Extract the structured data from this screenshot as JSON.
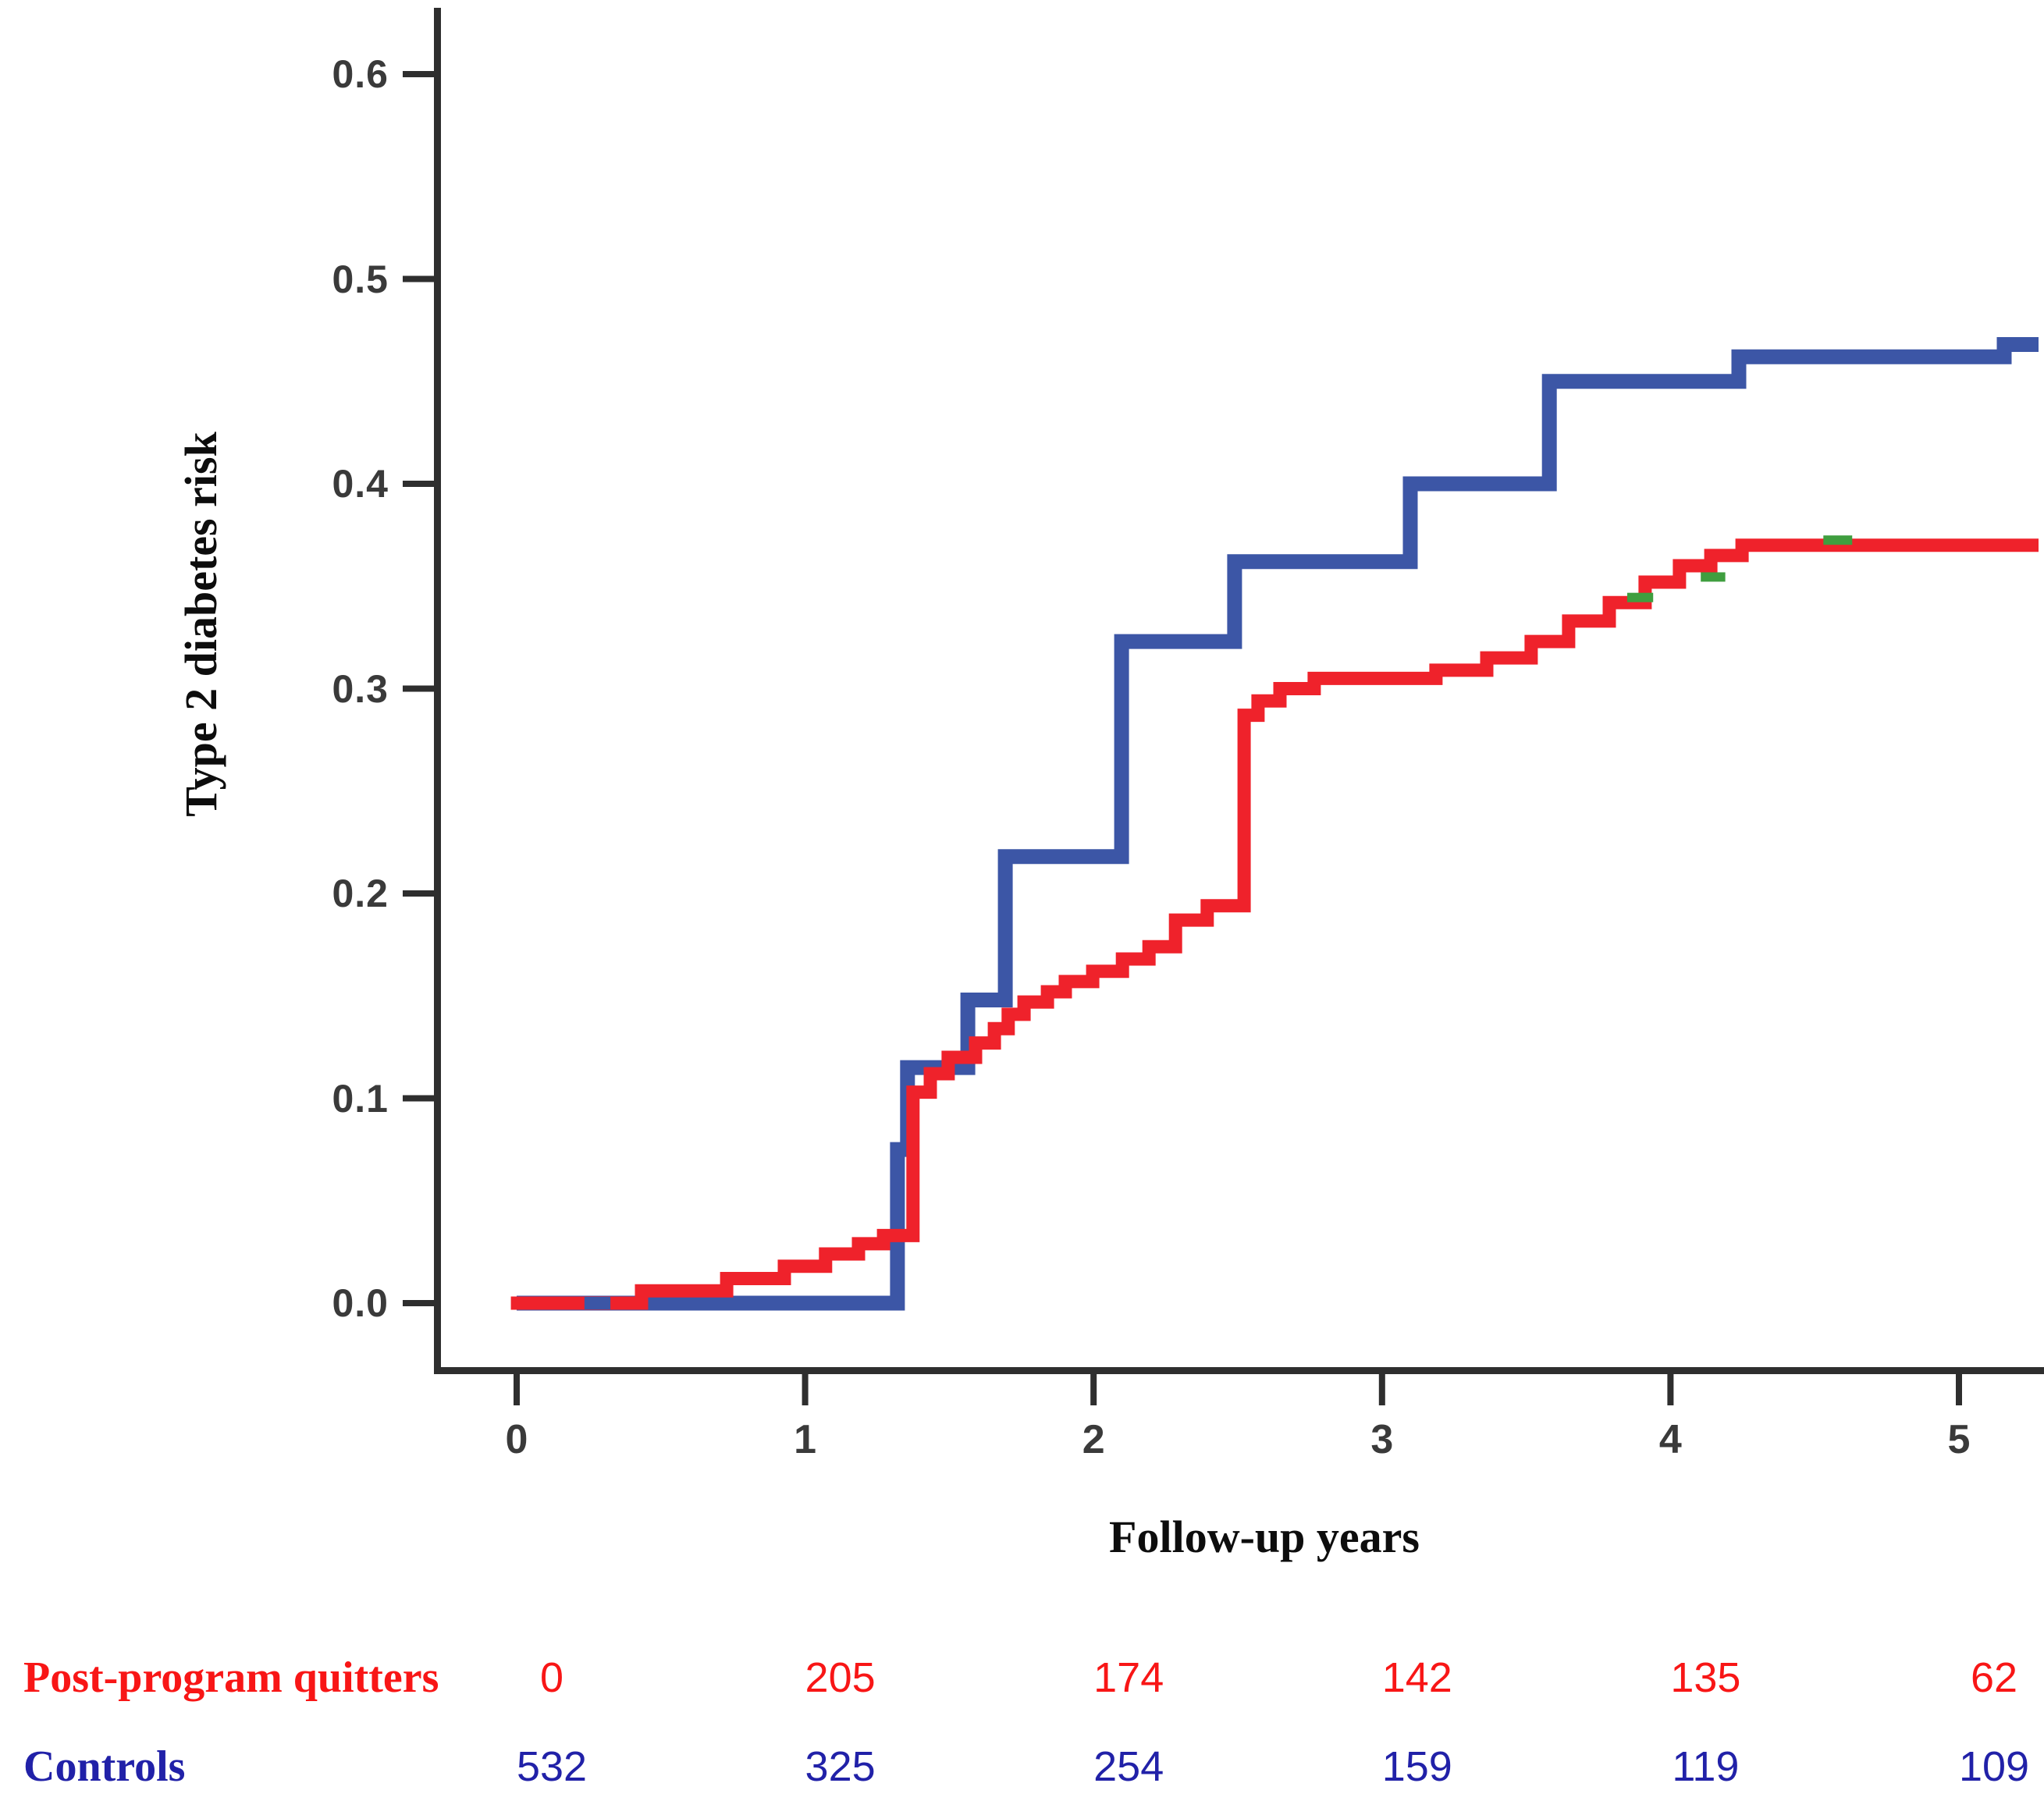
{
  "chart_data": {
    "type": "line",
    "subtype": "kaplan-meier-step-cumulative-incidence",
    "title": "",
    "xlabel": "Follow-up years",
    "ylabel": "Type 2 diabetes risk",
    "xlim": [
      -0.29,
      5.3
    ],
    "ylim": [
      -0.033,
      0.632
    ],
    "x_ticks": [
      "0",
      "1",
      "2",
      "3",
      "4",
      "5"
    ],
    "x_tick_values": [
      0,
      1,
      2,
      3,
      4,
      5
    ],
    "y_ticks": [
      "0.0",
      "0.1",
      "0.2",
      "0.3",
      "0.4",
      "0.5",
      "0.6"
    ],
    "y_tick_values": [
      0.0,
      0.1,
      0.2,
      0.3,
      0.4,
      0.5,
      0.6
    ],
    "grid": false,
    "legend_position": "none",
    "series": [
      {
        "name": "Controls",
        "color": "#3C56A6",
        "stroke_width": 19,
        "end_t": 5.276,
        "step_points": [
          [
            0,
            0
          ],
          [
            1.32,
            0.075
          ],
          [
            1.355,
            0.115
          ],
          [
            1.564,
            0.148
          ],
          [
            1.694,
            0.218
          ],
          [
            2.097,
            0.323
          ],
          [
            2.489,
            0.362
          ],
          [
            3.098,
            0.4
          ],
          [
            3.58,
            0.45
          ],
          [
            4.237,
            0.462
          ],
          [
            5.157,
            0.468
          ]
        ]
      },
      {
        "name": "Post-program quitters",
        "color": "#EF222B",
        "stroke_width": 17,
        "end_t": 5.276,
        "step_points": [
          [
            -0.02,
            0
          ],
          [
            0.433,
            0.006
          ],
          [
            0.728,
            0.012
          ],
          [
            0.928,
            0.018
          ],
          [
            1.071,
            0.024
          ],
          [
            1.185,
            0.029
          ],
          [
            1.272,
            0.033
          ],
          [
            1.374,
            0.103
          ],
          [
            1.434,
            0.112
          ],
          [
            1.496,
            0.12
          ],
          [
            1.591,
            0.127
          ],
          [
            1.656,
            0.134
          ],
          [
            1.704,
            0.141
          ],
          [
            1.759,
            0.147
          ],
          [
            1.84,
            0.152
          ],
          [
            1.902,
            0.157
          ],
          [
            1.997,
            0.162
          ],
          [
            2.1,
            0.168
          ],
          [
            2.192,
            0.174
          ],
          [
            2.284,
            0.187
          ],
          [
            2.394,
            0.194
          ],
          [
            2.522,
            0.287
          ],
          [
            2.57,
            0.294
          ],
          [
            2.646,
            0.3
          ],
          [
            2.765,
            0.305
          ],
          [
            3.187,
            0.309
          ],
          [
            3.363,
            0.315
          ],
          [
            3.517,
            0.323
          ],
          [
            3.647,
            0.333
          ],
          [
            3.788,
            0.342
          ],
          [
            3.912,
            0.352
          ],
          [
            4.031,
            0.36
          ],
          [
            4.14,
            0.365
          ],
          [
            4.248,
            0.37
          ]
        ]
      }
    ],
    "green_tick_marks": [
      {
        "t1": 3.85,
        "t2": 3.94,
        "v": 0.3445
      },
      {
        "t1": 4.105,
        "t2": 4.19,
        "v": 0.3545
      },
      {
        "t1": 4.53,
        "t2": 4.63,
        "v": 0.3725
      }
    ],
    "blue_dash_at_zero": {
      "t1": 0.235,
      "t2": 0.325,
      "v": 0
    },
    "green_color": "#3F9E3F"
  },
  "axis_titles": {
    "x": "Follow-up years",
    "y": "Type 2 diabetes risk"
  },
  "risk_table": {
    "rows": [
      {
        "label": "Post-program quitters",
        "color": "#F81616",
        "values": [
          "0",
          "205",
          "174",
          "142",
          "135",
          "62"
        ]
      },
      {
        "label": "Controls",
        "color": "#2121A8",
        "values": [
          "532",
          "325",
          "254",
          "159",
          "119",
          "109"
        ]
      }
    ]
  },
  "style_colors": {
    "spine": "#2e2e2e",
    "tick": "#2e2e2e",
    "tick_label": "#3a3a3a"
  }
}
